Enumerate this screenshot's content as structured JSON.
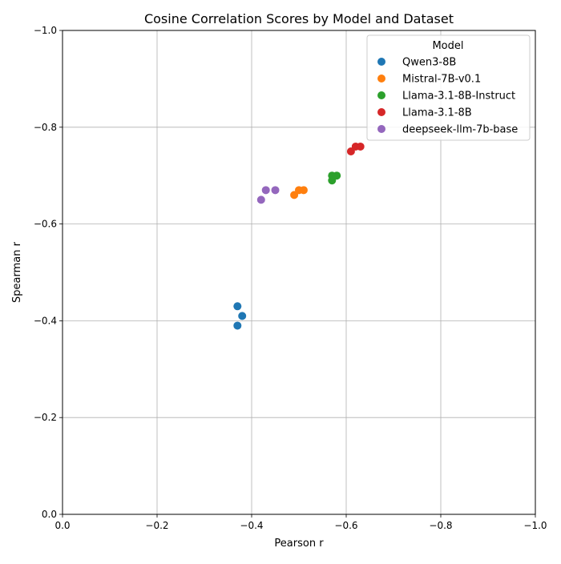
{
  "chart_data": {
    "type": "scatter",
    "title": "Cosine Correlation Scores by Model and Dataset",
    "xlabel": "Pearson r",
    "ylabel": "Spearman r",
    "xlim": [
      0,
      -1
    ],
    "ylim": [
      0,
      -1
    ],
    "x_ticks": [
      0,
      -0.2,
      -0.4,
      -0.6,
      -0.8,
      -1
    ],
    "x_tick_labels": [
      "0.0",
      "−0.2",
      "−0.4",
      "−0.6",
      "−0.8",
      "−1.0"
    ],
    "y_ticks": [
      0,
      -0.2,
      -0.4,
      -0.6,
      -0.8,
      -1
    ],
    "y_tick_labels": [
      "0.0",
      "−0.2",
      "−0.4",
      "−0.6",
      "−0.8",
      "−1.0"
    ],
    "grid": true,
    "legend_title": "Model",
    "legend_position": "top-right",
    "series": [
      {
        "name": "Qwen3-8B",
        "color": "#1f77b4",
        "points": [
          [
            -0.37,
            -0.43
          ],
          [
            -0.38,
            -0.41
          ],
          [
            -0.37,
            -0.39
          ]
        ]
      },
      {
        "name": "Mistral-7B-v0.1",
        "color": "#ff7f0e",
        "points": [
          [
            -0.49,
            -0.66
          ],
          [
            -0.5,
            -0.67
          ],
          [
            -0.51,
            -0.67
          ]
        ]
      },
      {
        "name": "Llama-3.1-8B-Instruct",
        "color": "#2ca02c",
        "points": [
          [
            -0.57,
            -0.69
          ],
          [
            -0.57,
            -0.7
          ],
          [
            -0.58,
            -0.7
          ]
        ]
      },
      {
        "name": "Llama-3.1-8B",
        "color": "#d62728",
        "points": [
          [
            -0.61,
            -0.75
          ],
          [
            -0.62,
            -0.76
          ],
          [
            -0.63,
            -0.76
          ]
        ]
      },
      {
        "name": "deepseek-llm-7b-base",
        "color": "#9467bd",
        "points": [
          [
            -0.42,
            -0.65
          ],
          [
            -0.43,
            -0.67
          ],
          [
            -0.45,
            -0.67
          ]
        ]
      }
    ]
  }
}
